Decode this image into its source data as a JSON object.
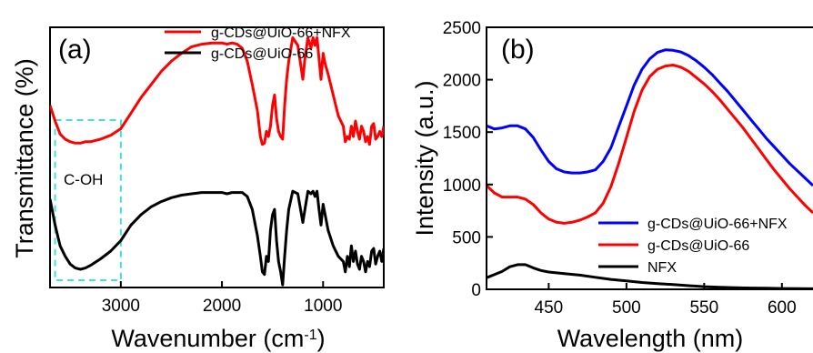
{
  "chart_data": [
    {
      "panel_label": "(a)",
      "type": "line",
      "xlabel": "Wavenumber (cm",
      "xlabel_sup": "-1",
      "xlabel_end": ")",
      "ylabel": "Transmittance (%)",
      "x_reversed": true,
      "xlim": [
        3700,
        400
      ],
      "ylim": [
        0,
        100
      ],
      "y_ticks_shown": false,
      "x_ticks": [
        3000,
        2000,
        1000
      ],
      "x_tick_labels": [
        "3000",
        "2000",
        "1000"
      ],
      "legend_position": "top-right",
      "annotation": {
        "text": "C-OH",
        "box_x_range": [
          3650,
          3000
        ],
        "color": "#40e0e0"
      },
      "series": [
        {
          "name": "g-CDs@UiO-66+NFX",
          "color": "#ff0000",
          "x": [
            3700,
            3650,
            3600,
            3550,
            3500,
            3450,
            3400,
            3350,
            3300,
            3200,
            3100,
            3000,
            2900,
            2800,
            2700,
            2600,
            2500,
            2400,
            2300,
            2200,
            2100,
            2000,
            1950,
            1900,
            1850,
            1800,
            1750,
            1700,
            1650,
            1620,
            1600,
            1580,
            1560,
            1540,
            1520,
            1500,
            1480,
            1460,
            1440,
            1420,
            1400,
            1380,
            1360,
            1340,
            1300,
            1250,
            1200,
            1180,
            1150,
            1120,
            1100,
            1080,
            1060,
            1040,
            1020,
            1000,
            980,
            950,
            900,
            850,
            800,
            780,
            760,
            740,
            720,
            700,
            680,
            660,
            640,
            620,
            600,
            580,
            560,
            540,
            520,
            500,
            480,
            460,
            440,
            420,
            400
          ],
          "y": [
            70,
            64,
            59,
            57,
            56,
            55.5,
            55.5,
            56,
            56,
            57,
            58.5,
            61,
            67,
            73,
            78,
            83,
            87,
            90,
            92.5,
            93.5,
            94,
            94,
            93.5,
            94,
            93.5,
            92,
            87,
            78,
            68,
            58,
            55,
            55.5,
            60,
            58,
            62,
            70,
            74,
            65,
            60,
            58,
            57,
            70,
            80,
            87,
            96,
            93,
            80,
            88,
            96,
            92,
            96,
            93,
            96,
            88,
            80,
            90,
            86,
            82,
            74,
            66,
            62,
            56,
            58,
            57,
            62,
            58,
            64,
            60,
            57,
            62,
            60,
            56,
            58,
            55,
            62,
            63,
            57,
            58,
            60,
            58,
            62
          ]
        },
        {
          "name": "g-CDs@UiO-66",
          "color": "#000000",
          "x": [
            3700,
            3650,
            3600,
            3550,
            3500,
            3450,
            3400,
            3350,
            3300,
            3200,
            3100,
            3000,
            2900,
            2800,
            2700,
            2600,
            2500,
            2400,
            2300,
            2200,
            2100,
            2000,
            1950,
            1900,
            1850,
            1800,
            1750,
            1700,
            1650,
            1620,
            1600,
            1580,
            1560,
            1540,
            1520,
            1500,
            1480,
            1460,
            1440,
            1420,
            1400,
            1380,
            1360,
            1340,
            1300,
            1250,
            1200,
            1180,
            1150,
            1120,
            1100,
            1080,
            1060,
            1040,
            1020,
            1000,
            980,
            950,
            900,
            850,
            800,
            780,
            760,
            740,
            720,
            700,
            680,
            660,
            640,
            620,
            600,
            580,
            560,
            540,
            520,
            500,
            480,
            460,
            440,
            420,
            400
          ],
          "y": [
            34,
            24,
            16,
            12,
            9,
            7.5,
            7,
            7.5,
            8.5,
            11,
            14,
            18,
            24,
            28,
            31,
            33,
            34.5,
            35.5,
            36,
            36.5,
            36.5,
            36.5,
            36,
            36.5,
            36.5,
            36.5,
            35,
            30,
            20,
            12,
            6,
            5,
            12,
            10,
            22,
            28,
            30,
            18,
            10,
            6,
            1,
            12,
            22,
            30,
            37,
            36,
            25,
            30,
            37,
            36,
            37,
            35,
            37,
            30,
            24,
            32,
            28,
            22,
            16,
            12,
            10,
            6,
            12,
            8,
            16,
            10,
            14,
            9,
            7,
            12,
            10,
            6,
            10,
            8,
            14,
            15,
            9,
            12,
            14,
            10,
            15
          ]
        }
      ]
    },
    {
      "panel_label": "(b)",
      "type": "line",
      "xlabel": "Wavelength (nm)",
      "ylabel": "Intensity (a.u.)",
      "xlim": [
        410,
        620
      ],
      "ylim": [
        0,
        2500
      ],
      "x_ticks": [
        450,
        500,
        550,
        600
      ],
      "x_tick_labels": [
        "450",
        "500",
        "550",
        "600"
      ],
      "y_ticks": [
        0,
        500,
        1000,
        1500,
        2000,
        2500
      ],
      "y_tick_labels": [
        "0",
        "500",
        "1000",
        "1500",
        "2000",
        "2500"
      ],
      "legend_position": "bottom-right",
      "series": [
        {
          "name": "g-CDs@UiO-66+NFX",
          "color": "#0000ff",
          "x": [
            410,
            415,
            420,
            425,
            430,
            435,
            440,
            445,
            450,
            455,
            460,
            465,
            470,
            475,
            480,
            485,
            490,
            495,
            500,
            505,
            510,
            515,
            520,
            525,
            530,
            535,
            540,
            545,
            550,
            555,
            560,
            565,
            570,
            575,
            580,
            585,
            590,
            595,
            600,
            605,
            610,
            615,
            620
          ],
          "y": [
            1560,
            1530,
            1540,
            1560,
            1560,
            1530,
            1450,
            1330,
            1220,
            1150,
            1120,
            1110,
            1110,
            1120,
            1140,
            1220,
            1350,
            1550,
            1750,
            1950,
            2100,
            2200,
            2260,
            2285,
            2280,
            2265,
            2230,
            2180,
            2120,
            2050,
            1970,
            1890,
            1800,
            1710,
            1620,
            1530,
            1440,
            1360,
            1280,
            1200,
            1130,
            1060,
            990
          ]
        },
        {
          "name": "g-CDs@UiO-66",
          "color": "#ff0000",
          "x": [
            410,
            415,
            420,
            425,
            430,
            435,
            440,
            445,
            450,
            455,
            460,
            465,
            470,
            475,
            480,
            485,
            490,
            495,
            500,
            505,
            510,
            515,
            520,
            525,
            530,
            535,
            540,
            545,
            550,
            555,
            560,
            565,
            570,
            575,
            580,
            585,
            590,
            595,
            600,
            605,
            610,
            615,
            620
          ],
          "y": [
            990,
            920,
            880,
            880,
            880,
            860,
            810,
            730,
            670,
            640,
            630,
            640,
            660,
            690,
            730,
            820,
            980,
            1200,
            1450,
            1700,
            1900,
            2030,
            2100,
            2130,
            2140,
            2120,
            2080,
            2020,
            1960,
            1890,
            1810,
            1720,
            1630,
            1540,
            1440,
            1340,
            1240,
            1140,
            1050,
            960,
            880,
            800,
            730
          ]
        },
        {
          "name": "NFX",
          "color": "#000000",
          "x": [
            410,
            415,
            420,
            425,
            430,
            435,
            440,
            445,
            450,
            460,
            470,
            480,
            490,
            500,
            510,
            520,
            530,
            540,
            550,
            560,
            570,
            580,
            590,
            600,
            610,
            620
          ],
          "y": [
            110,
            140,
            170,
            215,
            235,
            235,
            205,
            180,
            165,
            150,
            135,
            115,
            95,
            80,
            65,
            55,
            45,
            35,
            25,
            20,
            15,
            12,
            10,
            8,
            6,
            5
          ]
        }
      ]
    }
  ]
}
